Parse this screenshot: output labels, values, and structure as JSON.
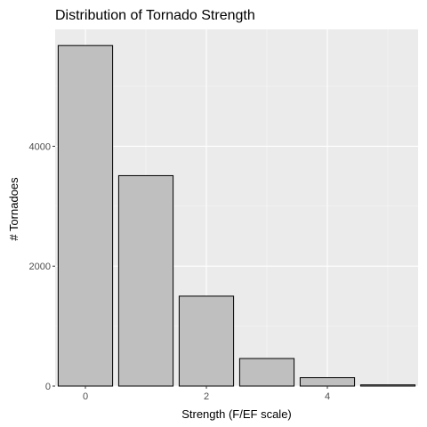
{
  "chart_data": {
    "type": "bar",
    "title": "Distribution of Tornado Strength",
    "xlabel": "Strength (F/EF scale)",
    "ylabel": "# Tornadoes",
    "categories": [
      0,
      1,
      2,
      3,
      4,
      5
    ],
    "values": [
      5680,
      3510,
      1500,
      460,
      140,
      20
    ],
    "x_ticks": [
      0,
      2,
      4
    ],
    "y_ticks": [
      0,
      2000,
      4000
    ],
    "xlim": [
      -0.5,
      5.5
    ],
    "ylim": [
      0,
      5950
    ],
    "grid": true,
    "colors": {
      "panel_background": "#ebebeb",
      "grid_major": "#ffffff",
      "grid_minor": "#f5f5f5",
      "bar_fill": "#bfbfbf",
      "bar_stroke": "#000000",
      "tick_color": "#333333"
    }
  }
}
